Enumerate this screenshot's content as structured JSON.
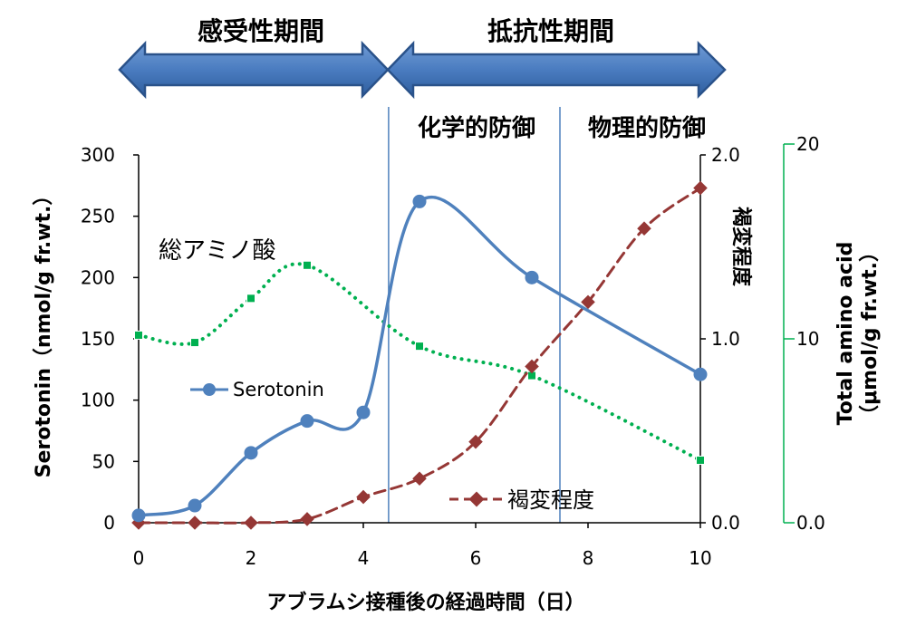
{
  "chart_data": {
    "type": "line",
    "xlabel": "アブラムシ接種後の経過時間（日）",
    "x_ticks": [
      "0",
      "2",
      "4",
      "6",
      "8",
      "10"
    ],
    "xlim": [
      0,
      10
    ],
    "y_axes": {
      "left": {
        "label": "Serotonin（nmol/g fr.wt.）",
        "lim": [
          0,
          300
        ],
        "ticks": [
          "0",
          "50",
          "100",
          "150",
          "200",
          "250",
          "300"
        ]
      },
      "right1": {
        "label": "褐変程度",
        "lim": [
          0,
          2
        ],
        "ticks": [
          "0.0",
          "1.0",
          "2.0"
        ]
      },
      "right2": {
        "label_line1": "Total amino acid",
        "label_line2": "（μmol/g fr.wt.）",
        "lim": [
          0,
          20
        ],
        "ticks": [
          "0.0",
          "10",
          "20"
        ],
        "color": "#00b050"
      }
    },
    "series": [
      {
        "name": "Serotonin",
        "axis": "left",
        "style": "solid-smooth",
        "marker": "circle",
        "color": "#4f81bd",
        "x": [
          0,
          1,
          2,
          3,
          4,
          5,
          7,
          10
        ],
        "y": [
          6,
          14,
          57,
          83,
          90,
          262,
          200,
          121
        ]
      },
      {
        "name": "褐変程度",
        "axis": "right1",
        "style": "dashed-smooth",
        "marker": "diamond",
        "color": "#953735",
        "x": [
          0,
          1,
          2,
          3,
          4,
          5,
          6,
          7,
          8,
          9,
          10
        ],
        "y": [
          0.0,
          0.0,
          0.0,
          0.02,
          0.14,
          0.24,
          0.44,
          0.85,
          1.2,
          1.6,
          1.82
        ]
      },
      {
        "name": "総アミノ酸",
        "axis": "right2",
        "style": "dotted-smooth",
        "marker": "square",
        "color": "#00b050",
        "x": [
          0,
          1,
          2,
          3,
          5,
          7,
          10
        ],
        "y": [
          10.2,
          9.8,
          12.2,
          14.0,
          9.6,
          8.0,
          3.4
        ]
      }
    ],
    "periods": [
      {
        "label": "感受性期間",
        "x_range": [
          0,
          4.45
        ]
      },
      {
        "label": "抵抗性期間",
        "x_range": [
          4.45,
          10.4
        ]
      }
    ],
    "phases": [
      {
        "label": "化学的防御"
      },
      {
        "label": "物理的防御"
      }
    ],
    "vlines_x": [
      4.45,
      7.5
    ],
    "annotations": {
      "amino": "総アミノ酸",
      "serotonin_legend": "Serotonin",
      "browning_legend": "褐変程度"
    },
    "grid": false
  }
}
